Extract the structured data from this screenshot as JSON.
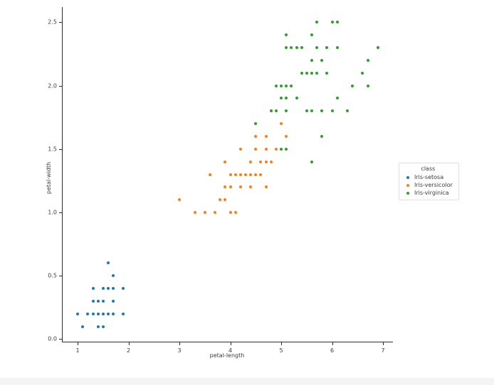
{
  "figure": {
    "background_color": "#ffffff",
    "text_color": "#3b3b3b"
  },
  "chart_data": {
    "type": "scatter",
    "title": "",
    "xlabel": "petal-length",
    "ylabel": "petal-width",
    "xlim": [
      0.705,
      7.195
    ],
    "ylim": [
      -0.02,
      2.62
    ],
    "x_ticks": [
      1,
      2,
      3,
      4,
      5,
      6,
      7
    ],
    "x_tick_labels": [
      "1",
      "2",
      "3",
      "4",
      "5",
      "6",
      "7"
    ],
    "y_ticks": [
      0.0,
      0.5,
      1.0,
      1.5,
      2.0,
      2.5
    ],
    "y_tick_labels": [
      "0.0",
      "0.5",
      "1.0",
      "1.5",
      "2.0",
      "2.5"
    ],
    "grid": false,
    "legend": {
      "title": "class",
      "position": "right-center"
    },
    "series": [
      {
        "name": "Iris-setosa",
        "color": "#1f77b4",
        "points": [
          [
            1.0,
            0.2
          ],
          [
            1.1,
            0.1
          ],
          [
            1.2,
            0.2
          ],
          [
            1.3,
            0.2
          ],
          [
            1.3,
            0.3
          ],
          [
            1.3,
            0.4
          ],
          [
            1.4,
            0.1
          ],
          [
            1.4,
            0.2
          ],
          [
            1.4,
            0.3
          ],
          [
            1.5,
            0.1
          ],
          [
            1.5,
            0.2
          ],
          [
            1.5,
            0.3
          ],
          [
            1.5,
            0.4
          ],
          [
            1.6,
            0.2
          ],
          [
            1.6,
            0.4
          ],
          [
            1.6,
            0.6
          ],
          [
            1.7,
            0.2
          ],
          [
            1.7,
            0.3
          ],
          [
            1.7,
            0.4
          ],
          [
            1.7,
            0.5
          ],
          [
            1.9,
            0.2
          ],
          [
            1.9,
            0.4
          ]
        ]
      },
      {
        "name": "Iris-versicolor",
        "color": "#ff7f0e",
        "points": [
          [
            3.3,
            1.0
          ],
          [
            3.5,
            1.0
          ],
          [
            3.7,
            1.0
          ],
          [
            4.0,
            1.0
          ],
          [
            4.1,
            1.0
          ],
          [
            3.0,
            1.1
          ],
          [
            3.8,
            1.1
          ],
          [
            3.9,
            1.1
          ],
          [
            3.9,
            1.2
          ],
          [
            4.0,
            1.2
          ],
          [
            4.2,
            1.2
          ],
          [
            4.4,
            1.2
          ],
          [
            4.7,
            1.2
          ],
          [
            3.6,
            1.3
          ],
          [
            4.0,
            1.3
          ],
          [
            4.1,
            1.3
          ],
          [
            4.2,
            1.3
          ],
          [
            4.3,
            1.3
          ],
          [
            4.4,
            1.3
          ],
          [
            4.5,
            1.3
          ],
          [
            4.6,
            1.3
          ],
          [
            3.9,
            1.4
          ],
          [
            4.4,
            1.4
          ],
          [
            4.6,
            1.4
          ],
          [
            4.7,
            1.4
          ],
          [
            4.8,
            1.4
          ],
          [
            4.2,
            1.5
          ],
          [
            4.5,
            1.5
          ],
          [
            4.7,
            1.5
          ],
          [
            4.9,
            1.5
          ],
          [
            4.5,
            1.6
          ],
          [
            4.7,
            1.6
          ],
          [
            5.1,
            1.6
          ],
          [
            5.0,
            1.7
          ],
          [
            4.8,
            1.8
          ]
        ]
      },
      {
        "name": "Iris-virginica",
        "color": "#2ca02c",
        "points": [
          [
            5.6,
            1.4
          ],
          [
            5.0,
            1.5
          ],
          [
            5.1,
            1.5
          ],
          [
            5.8,
            1.6
          ],
          [
            4.5,
            1.7
          ],
          [
            4.8,
            1.8
          ],
          [
            4.9,
            1.8
          ],
          [
            5.1,
            1.8
          ],
          [
            5.5,
            1.8
          ],
          [
            5.6,
            1.8
          ],
          [
            5.8,
            1.8
          ],
          [
            6.0,
            1.8
          ],
          [
            6.3,
            1.8
          ],
          [
            5.0,
            1.9
          ],
          [
            5.1,
            1.9
          ],
          [
            5.3,
            1.9
          ],
          [
            6.1,
            1.9
          ],
          [
            4.9,
            2.0
          ],
          [
            5.0,
            2.0
          ],
          [
            5.1,
            2.0
          ],
          [
            5.2,
            2.0
          ],
          [
            6.4,
            2.0
          ],
          [
            6.7,
            2.0
          ],
          [
            5.4,
            2.1
          ],
          [
            5.5,
            2.1
          ],
          [
            5.6,
            2.1
          ],
          [
            5.7,
            2.1
          ],
          [
            5.9,
            2.1
          ],
          [
            6.6,
            2.1
          ],
          [
            5.6,
            2.2
          ],
          [
            5.8,
            2.2
          ],
          [
            6.7,
            2.2
          ],
          [
            5.1,
            2.3
          ],
          [
            5.2,
            2.3
          ],
          [
            5.3,
            2.3
          ],
          [
            5.4,
            2.3
          ],
          [
            5.7,
            2.3
          ],
          [
            5.9,
            2.3
          ],
          [
            6.1,
            2.3
          ],
          [
            6.9,
            2.3
          ],
          [
            5.1,
            2.4
          ],
          [
            5.6,
            2.4
          ],
          [
            5.7,
            2.5
          ],
          [
            6.0,
            2.5
          ],
          [
            6.1,
            2.5
          ]
        ]
      }
    ]
  }
}
